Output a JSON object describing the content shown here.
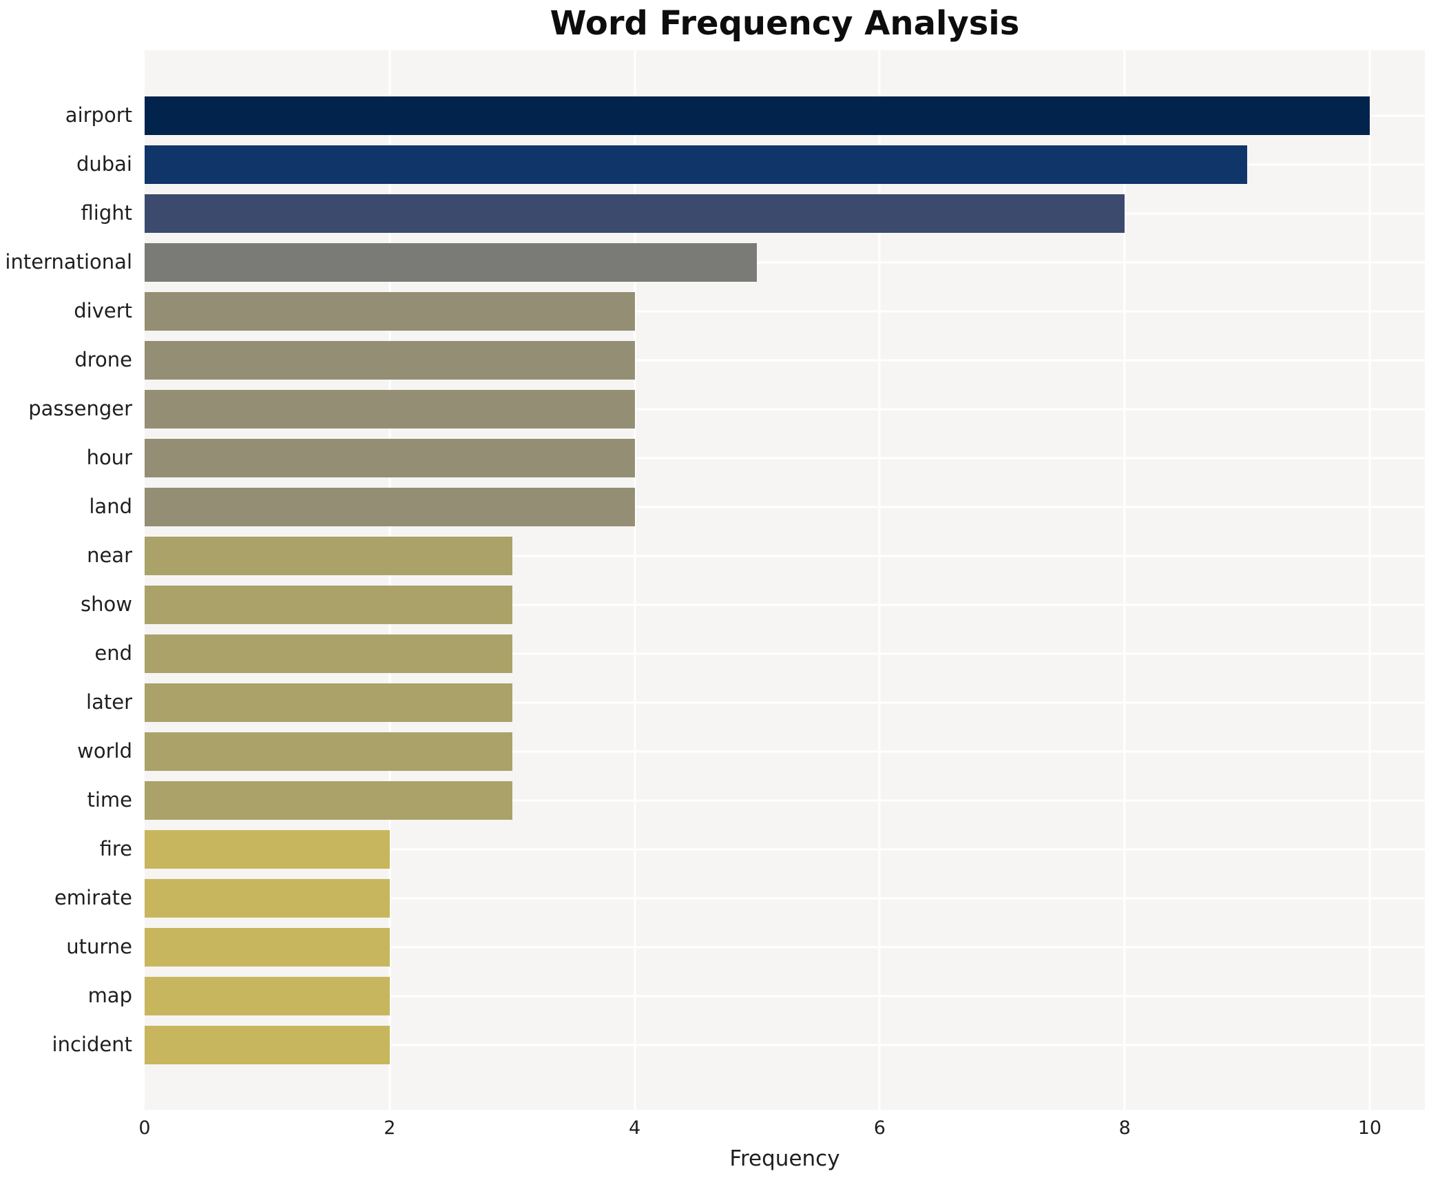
{
  "title": "Word Frequency Analysis",
  "chart_data": {
    "type": "bar",
    "orientation": "horizontal",
    "title": "Word Frequency Analysis",
    "xlabel": "Frequency",
    "ylabel": "",
    "categories": [
      "airport",
      "dubai",
      "flight",
      "international",
      "divert",
      "drone",
      "passenger",
      "hour",
      "land",
      "near",
      "show",
      "end",
      "later",
      "world",
      "time",
      "fire",
      "emirate",
      "uturne",
      "map",
      "incident"
    ],
    "values": [
      10,
      9,
      8,
      5,
      4,
      4,
      4,
      4,
      4,
      3,
      3,
      3,
      3,
      3,
      3,
      2,
      2,
      2,
      2,
      2
    ],
    "bar_colors": [
      "#02234c",
      "#103569",
      "#3c4a6e",
      "#7a7a76",
      "#948e74",
      "#948e74",
      "#948e74",
      "#948e74",
      "#948e74",
      "#aba269",
      "#aba269",
      "#aba269",
      "#aba269",
      "#aba269",
      "#aba269",
      "#c8b65f",
      "#c8b65f",
      "#c8b65f",
      "#c8b65f",
      "#c8b65f"
    ],
    "xticks": [
      0,
      2,
      4,
      6,
      8,
      10
    ],
    "xlim": [
      0,
      10.45
    ],
    "grid": true,
    "legend": false,
    "colormap": "cividis reversed (high=dark navy, low=gold)",
    "plot_background": "#f6f5f4",
    "grid_color": "#ffffff",
    "text_color": "#1f1f1f"
  }
}
